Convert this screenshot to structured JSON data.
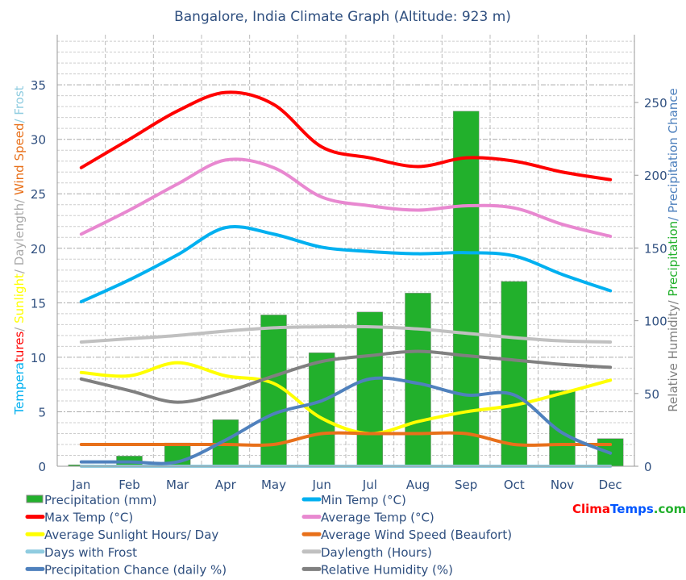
{
  "chart_data": {
    "type": "bar+line",
    "title": "Bangalore, India Climate Graph (Altitude: 923 m)",
    "left_axis_label_parts": [
      {
        "text": "Tempera",
        "color": "#00b0f0"
      },
      {
        "text": "tures",
        "color": "#ff0000"
      },
      {
        "text": "/ ",
        "color": "#aaaaaa"
      },
      {
        "text": "Sunlight",
        "color": "#ffff00"
      },
      {
        "text": "/ Daylength/ ",
        "color": "#aaaaaa"
      },
      {
        "text": "Wind Speed",
        "color": "#e8701a"
      },
      {
        "text": "/ Frost",
        "color": "#8fcce0"
      }
    ],
    "right_axis_label_parts": [
      {
        "text": "Relative Humidity/ ",
        "color": "#808080"
      },
      {
        "text": "Precipitation",
        "color": "#22b02c"
      },
      {
        "text": "/ Precipitation Chance",
        "color": "#4f81bd"
      }
    ],
    "categories": [
      "Jan",
      "Feb",
      "Mar",
      "Apr",
      "May",
      "Jun",
      "Jul",
      "Aug",
      "Sep",
      "Oct",
      "Nov",
      "Dec"
    ],
    "left_ylim": [
      0,
      39.6
    ],
    "left_ticks": [
      0,
      5,
      10,
      15,
      20,
      25,
      30,
      35
    ],
    "right_ylim": [
      0,
      296.6
    ],
    "right_ticks": [
      0,
      50,
      100,
      150,
      200,
      250
    ],
    "grid": true,
    "legend_placement": "bottom",
    "series": [
      {
        "name": "Precipitation (mm)",
        "type": "bar",
        "axis": "right",
        "color": "#22b02c",
        "values": [
          1,
          7,
          16,
          32,
          104,
          78,
          106,
          119,
          244,
          127,
          52,
          19
        ]
      },
      {
        "name": "Min Temp (°C)",
        "type": "line",
        "axis": "left",
        "color": "#00b0f0",
        "values": [
          15.1,
          17.1,
          19.4,
          21.9,
          21.3,
          20.1,
          19.7,
          19.5,
          19.6,
          19.3,
          17.6,
          16.1
        ]
      },
      {
        "name": "Max Temp (°C)",
        "type": "line",
        "axis": "left",
        "color": "#ff0000",
        "values": [
          27.4,
          30.0,
          32.6,
          34.3,
          33.2,
          29.3,
          28.3,
          27.5,
          28.3,
          28.0,
          27.0,
          26.3
        ]
      },
      {
        "name": "Average Temp (°C)",
        "type": "line",
        "axis": "left",
        "color": "#e888d0",
        "values": [
          21.3,
          23.5,
          25.9,
          28.1,
          27.4,
          24.7,
          23.9,
          23.5,
          23.9,
          23.7,
          22.2,
          21.1
        ]
      },
      {
        "name": "Average Sunlight Hours/ Day",
        "type": "line",
        "axis": "left",
        "color": "#ffff00",
        "values": [
          8.6,
          8.3,
          9.5,
          8.3,
          7.6,
          4.4,
          3.0,
          4.1,
          5.0,
          5.6,
          6.7,
          7.9
        ]
      },
      {
        "name": "Average Wind Speed (Beaufort)",
        "type": "line",
        "axis": "left",
        "color": "#e8701a",
        "values": [
          2,
          2,
          2,
          2,
          2,
          3,
          3,
          3,
          3,
          2,
          2,
          2
        ]
      },
      {
        "name": "Days with Frost",
        "type": "line",
        "axis": "left",
        "color": "#8fcce0",
        "values": [
          0,
          0,
          0,
          0,
          0,
          0,
          0,
          0,
          0,
          0,
          0,
          0
        ]
      },
      {
        "name": "Daylength (Hours)",
        "type": "line",
        "axis": "left",
        "color": "#c0c0c0",
        "values": [
          11.4,
          11.7,
          12.0,
          12.4,
          12.7,
          12.8,
          12.8,
          12.6,
          12.2,
          11.8,
          11.5,
          11.4
        ]
      },
      {
        "name": "Precipitation Chance (daily %)",
        "type": "line",
        "axis": "right",
        "color": "#4f81bd",
        "values": [
          3,
          3,
          3,
          18,
          36,
          45,
          60,
          57,
          49,
          49,
          23,
          9
        ]
      },
      {
        "name": "Relative Humidity (%)",
        "type": "line",
        "axis": "right",
        "color": "#808080",
        "values": [
          60,
          52,
          44,
          51,
          62,
          72,
          76,
          79,
          76,
          73,
          70,
          68
        ]
      }
    ]
  },
  "logo": {
    "part1": "Clima",
    "part2": "Temps",
    "part3": ".com",
    "color1": "#ff0000",
    "color2": "#0055ff",
    "color3": "#22b02c"
  }
}
